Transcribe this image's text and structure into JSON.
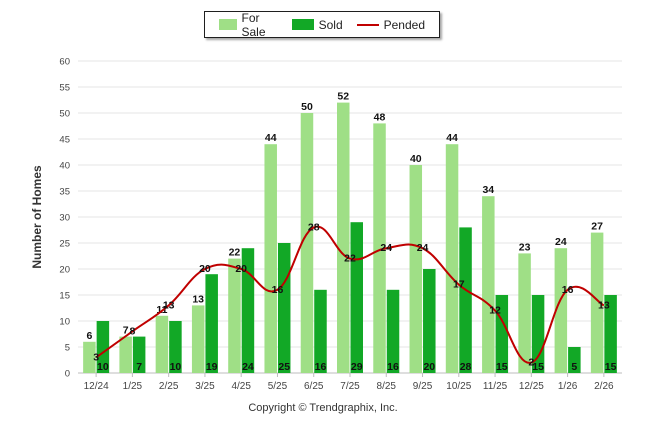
{
  "chart_data": {
    "type": "bar",
    "ylabel": "Number of Homes",
    "xlabel": "",
    "ylim": [
      0,
      60
    ],
    "yticks": [
      0,
      5,
      10,
      15,
      20,
      25,
      30,
      35,
      40,
      45,
      50,
      55,
      60
    ],
    "grid": true,
    "legend_position": "top-center",
    "categories": [
      "12/24",
      "1/25",
      "2/25",
      "3/25",
      "4/25",
      "5/25",
      "6/25",
      "7/25",
      "8/25",
      "9/25",
      "10/25",
      "11/25",
      "12/25",
      "1/26",
      "2/26"
    ],
    "series": [
      {
        "name": "For Sale",
        "type": "bar",
        "color": "#9fdf86",
        "values": [
          6,
          7,
          11,
          13,
          22,
          44,
          50,
          52,
          48,
          40,
          44,
          34,
          23,
          24,
          27
        ]
      },
      {
        "name": "Sold",
        "type": "bar",
        "color": "#12a826",
        "values": [
          10,
          7,
          10,
          19,
          24,
          25,
          16,
          29,
          16,
          20,
          28,
          15,
          15,
          5,
          15
        ]
      },
      {
        "name": "Pended",
        "type": "line",
        "color": "#c00000",
        "values": [
          3,
          8,
          13,
          20,
          20,
          16,
          28,
          22,
          24,
          24,
          17,
          12,
          2,
          16,
          13
        ]
      }
    ],
    "footer": "Copyright © Trendgraphix, Inc."
  }
}
